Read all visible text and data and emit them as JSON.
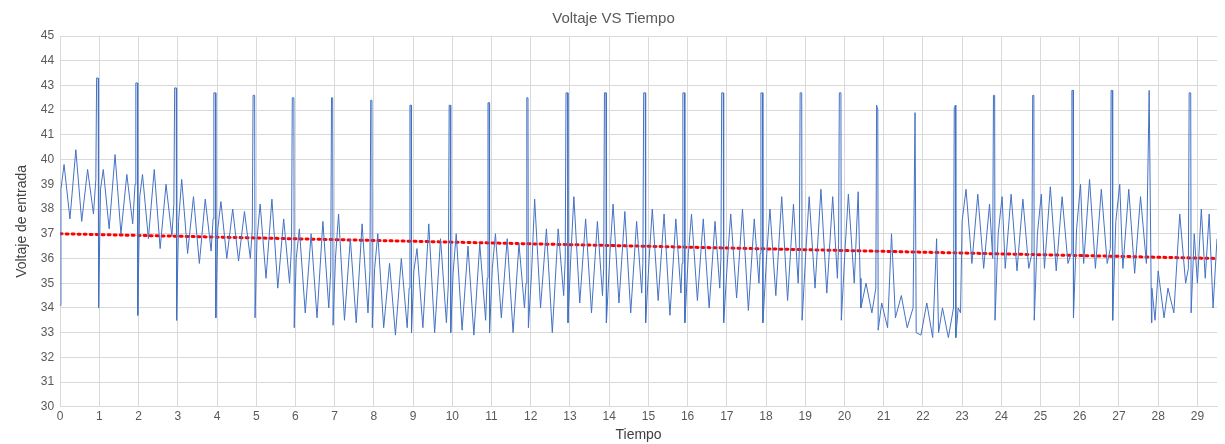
{
  "chart_data": {
    "type": "line",
    "title": "Voltaje VS Tiempo",
    "xlabel": "Tiempo",
    "ylabel": "Voltaje de entrada",
    "xlim": [
      0,
      29.5
    ],
    "xticks": [
      0,
      1,
      2,
      3,
      4,
      5,
      6,
      7,
      8,
      9,
      10,
      11,
      12,
      13,
      14,
      15,
      16,
      17,
      18,
      19,
      20,
      21,
      22,
      23,
      24,
      25,
      26,
      27,
      28,
      29
    ],
    "ylim": [
      30,
      45
    ],
    "yticks": [
      30,
      31,
      32,
      33,
      34,
      35,
      36,
      37,
      38,
      39,
      40,
      41,
      42,
      43,
      44,
      45
    ],
    "grid": true,
    "series": [
      {
        "color": "#4472c4",
        "x": [
          0,
          0.02,
          0.1,
          0.25,
          0.4,
          0.55,
          0.7,
          0.85,
          0.91,
          0.93,
          0.97,
          0.98,
          1.03,
          1.1,
          1.25,
          1.4,
          1.55,
          1.7,
          1.85,
          1.91,
          1.93,
          1.97,
          1.98,
          2.03,
          2.1,
          2.25,
          2.4,
          2.55,
          2.7,
          2.85,
          2.9,
          2.92,
          2.96,
          2.97,
          3.02,
          3.1,
          3.25,
          3.4,
          3.55,
          3.7,
          3.85,
          3.9,
          3.92,
          3.96,
          3.97,
          4.02,
          4.1,
          4.25,
          4.4,
          4.55,
          4.7,
          4.85,
          4.9,
          4.92,
          4.96,
          4.97,
          5.02,
          5.1,
          5.25,
          5.4,
          5.55,
          5.7,
          5.85,
          5.9,
          5.92,
          5.96,
          5.97,
          6.02,
          6.1,
          6.25,
          6.4,
          6.55,
          6.7,
          6.85,
          6.9,
          6.92,
          6.95,
          6.96,
          7.02,
          7.1,
          7.25,
          7.4,
          7.55,
          7.7,
          7.85,
          7.9,
          7.92,
          7.95,
          7.96,
          8.02,
          8.1,
          8.25,
          8.4,
          8.55,
          8.7,
          8.85,
          8.9,
          8.92,
          8.95,
          8.96,
          9.02,
          9.1,
          9.25,
          9.4,
          9.55,
          9.7,
          9.85,
          9.9,
          9.92,
          9.95,
          9.96,
          10.02,
          10.1,
          10.25,
          10.4,
          10.55,
          10.7,
          10.85,
          10.89,
          10.91,
          10.94,
          10.95,
          11.02,
          11.1,
          11.25,
          11.4,
          11.55,
          11.7,
          11.84,
          11.88,
          11.9,
          11.93,
          11.94,
          12.02,
          12.1,
          12.25,
          12.4,
          12.55,
          12.7,
          12.84,
          12.88,
          12.9,
          12.94,
          12.95,
          13.02,
          13.1,
          13.25,
          13.4,
          13.55,
          13.7,
          13.83,
          13.86,
          13.88,
          13.92,
          13.93,
          14.02,
          14.1,
          14.25,
          14.4,
          14.55,
          14.7,
          14.83,
          14.86,
          14.88,
          14.92,
          14.93,
          15.02,
          15.1,
          15.25,
          15.4,
          15.55,
          15.7,
          15.83,
          15.86,
          15.88,
          15.92,
          15.93,
          16.02,
          16.1,
          16.25,
          16.4,
          16.55,
          16.7,
          16.82,
          16.85,
          16.87,
          16.91,
          16.92,
          17.02,
          17.1,
          17.25,
          17.4,
          17.55,
          17.7,
          17.82,
          17.85,
          17.87,
          17.91,
          17.92,
          18.02,
          18.1,
          18.25,
          18.4,
          18.55,
          18.7,
          18.82,
          18.85,
          18.87,
          18.91,
          18.92,
          19.02,
          19.1,
          19.25,
          19.4,
          19.55,
          19.7,
          19.82,
          19.85,
          19.87,
          19.91,
          19.92,
          20.02,
          20.1,
          20.25,
          20.35,
          20.4,
          20.42,
          20.55,
          20.7,
          20.8,
          20.82,
          20.85,
          20.86,
          20.95,
          21.1,
          21.2,
          21.3,
          21.45,
          21.6,
          21.75,
          21.8,
          21.82,
          21.83,
          21.95,
          22.1,
          22.25,
          22.35,
          22.4,
          22.5,
          22.65,
          22.78,
          22.8,
          22.83,
          22.84,
          22.9,
          22.96,
          23.0,
          23.1,
          23.25,
          23.4,
          23.55,
          23.7,
          23.78,
          23.8,
          23.83,
          23.84,
          23.92,
          24.02,
          24.1,
          24.25,
          24.4,
          24.55,
          24.7,
          24.78,
          24.8,
          24.83,
          24.84,
          24.92,
          25.02,
          25.1,
          25.25,
          25.4,
          25.55,
          25.7,
          25.78,
          25.8,
          25.83,
          25.84,
          25.92,
          26.02,
          26.1,
          26.25,
          26.4,
          26.55,
          26.7,
          26.78,
          26.8,
          26.83,
          26.84,
          26.92,
          27.02,
          27.1,
          27.25,
          27.4,
          27.55,
          27.7,
          27.77,
          27.79,
          27.83,
          27.84,
          27.92,
          28.0,
          28.15,
          28.25,
          28.4,
          28.55,
          28.7,
          28.77,
          28.79,
          28.83,
          28.84,
          28.92,
          29.0,
          29.1,
          29.2,
          29.3,
          29.4,
          29.5
        ],
        "values": [
          34.1,
          38.8,
          39.8,
          37.6,
          40.4,
          37.5,
          39.6,
          37.8,
          39.2,
          43.3,
          43.3,
          34.0,
          38.8,
          39.6,
          37.2,
          40.2,
          37.0,
          39.4,
          37.4,
          39.0,
          43.1,
          43.1,
          33.7,
          38.5,
          39.4,
          36.8,
          39.6,
          36.4,
          39.0,
          36.9,
          38.2,
          42.9,
          42.9,
          33.5,
          37.5,
          39.2,
          36.2,
          38.5,
          35.8,
          38.4,
          36.3,
          37.6,
          42.7,
          42.7,
          33.6,
          37.2,
          38.3,
          36.0,
          38.0,
          35.9,
          37.9,
          36.0,
          37.2,
          42.6,
          42.6,
          33.6,
          36.8,
          38.2,
          35.2,
          38.4,
          34.8,
          37.6,
          35.0,
          36.5,
          42.5,
          42.5,
          33.2,
          36.0,
          37.2,
          33.8,
          37.0,
          33.6,
          37.5,
          34.0,
          35.5,
          42.5,
          42.5,
          33.3,
          36.0,
          37.8,
          33.5,
          36.8,
          33.4,
          37.4,
          33.8,
          35.5,
          42.4,
          42.4,
          33.2,
          35.6,
          37.0,
          33.2,
          35.8,
          32.9,
          36.0,
          33.2,
          34.8,
          42.2,
          42.2,
          33.0,
          35.5,
          36.4,
          33.2,
          37.4,
          33.0,
          36.8,
          33.4,
          35.0,
          42.2,
          42.2,
          33.0,
          35.4,
          37.0,
          33.1,
          36.5,
          32.9,
          36.6,
          33.5,
          35.2,
          42.3,
          42.3,
          33.0,
          35.6,
          37.0,
          33.6,
          36.8,
          33.0,
          36.6,
          34.0,
          35.0,
          42.5,
          42.5,
          33.2,
          35.4,
          38.4,
          34.0,
          37.2,
          33.0,
          37.2,
          34.5,
          36.0,
          42.7,
          42.7,
          33.4,
          36.0,
          38.5,
          34.2,
          37.6,
          33.8,
          37.5,
          34.5,
          35.6,
          42.7,
          42.7,
          33.4,
          36.2,
          38.2,
          34.2,
          37.9,
          33.8,
          37.5,
          34.6,
          35.8,
          42.7,
          42.7,
          33.4,
          36.0,
          38.0,
          34.3,
          37.8,
          33.7,
          37.6,
          34.6,
          35.8,
          42.7,
          42.7,
          33.4,
          36.2,
          37.8,
          34.3,
          37.6,
          34.0,
          37.5,
          34.8,
          36.0,
          42.7,
          42.7,
          33.4,
          36.0,
          37.8,
          34.4,
          38.0,
          33.9,
          37.6,
          35.0,
          36.2,
          42.7,
          42.7,
          33.4,
          36.2,
          38.0,
          34.5,
          38.5,
          34.3,
          38.2,
          35.0,
          36.4,
          42.7,
          42.7,
          33.5,
          36.4,
          38.5,
          34.8,
          38.8,
          34.6,
          38.5,
          35.2,
          36.6,
          42.7,
          42.7,
          33.5,
          36.5,
          38.6,
          35.0,
          38.7,
          35.2,
          34.0,
          35.0,
          33.8,
          34.8,
          42.2,
          42.0,
          33.1,
          34.2,
          33.2,
          37.0,
          33.6,
          34.5,
          33.2,
          34.0,
          41.9,
          41.9,
          33.0,
          32.9,
          34.2,
          32.8,
          36.8,
          33.0,
          34.0,
          32.8,
          34.0,
          42.1,
          42.2,
          32.8,
          34.0,
          33.8,
          37.5,
          38.8,
          35.8,
          38.6,
          35.6,
          38.2,
          36.0,
          42.6,
          42.6,
          33.5,
          37.0,
          38.5,
          35.6,
          38.6,
          35.5,
          38.4,
          35.6,
          36.2,
          42.6,
          42.6,
          33.5,
          37.0,
          38.6,
          35.6,
          38.9,
          35.5,
          38.5,
          35.8,
          36.2,
          42.8,
          42.8,
          33.6,
          37.2,
          39.0,
          35.8,
          39.2,
          35.6,
          38.8,
          35.8,
          36.4,
          42.8,
          42.8,
          33.5,
          37.5,
          39.0,
          35.6,
          38.8,
          35.4,
          38.5,
          35.8,
          42.8,
          42.8,
          33.4,
          34.8,
          33.5,
          35.5,
          33.6,
          34.8,
          33.8,
          37.8,
          35.0,
          35.6,
          42.7,
          42.7,
          33.8,
          37.0,
          35.0,
          38.0,
          35.2,
          37.8,
          34.0,
          36.8
        ]
      },
      {
        "type": "line",
        "color": "#ff0000",
        "line_style": "dotted",
        "x": [
          0,
          29.5
        ],
        "values": [
          37.0,
          36.0
        ]
      }
    ]
  }
}
